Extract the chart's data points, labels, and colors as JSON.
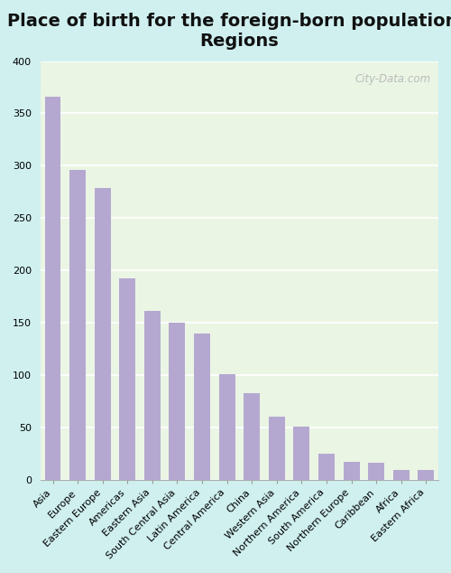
{
  "title": "Place of birth for the foreign-born population -\nRegions",
  "categories": [
    "Asia",
    "Europe",
    "Eastern Europe",
    "Americas",
    "Eastern Asia",
    "South Central Asia",
    "Latin America",
    "Central America",
    "China",
    "Western Asia",
    "Northern America",
    "South America",
    "Northern Europe",
    "Caribbean",
    "Africa",
    "Eastern Africa"
  ],
  "values": [
    366,
    296,
    279,
    192,
    161,
    150,
    140,
    101,
    83,
    60,
    51,
    25,
    17,
    16,
    9,
    9
  ],
  "bar_color": "#b5a8d0",
  "fig_facecolor": "#d0f0f0",
  "plot_facecolor": "#eaf5e4",
  "ylim": [
    0,
    400
  ],
  "yticks": [
    0,
    50,
    100,
    150,
    200,
    250,
    300,
    350,
    400
  ],
  "title_fontsize": 14,
  "tick_fontsize": 8,
  "watermark": "City-Data.com"
}
